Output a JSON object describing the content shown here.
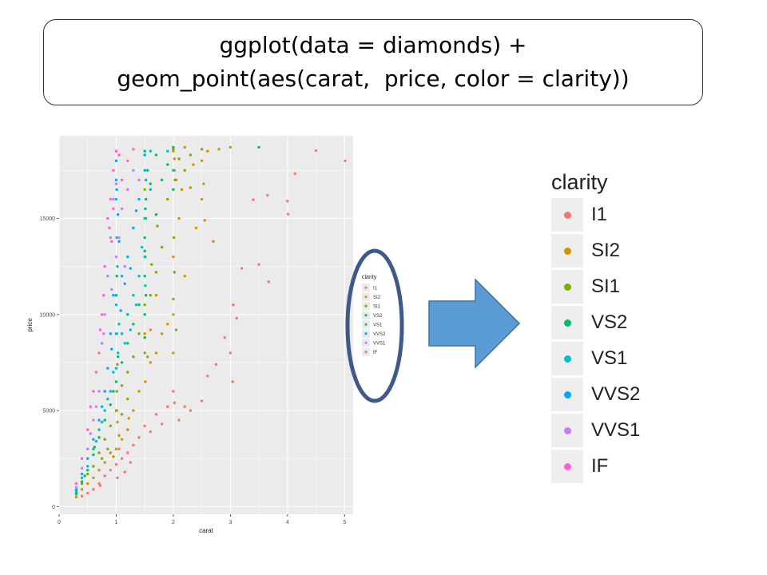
{
  "code": {
    "line1": "ggplot(data = diamonds) +",
    "line2": "geom_point(aes(carat,  price, color = clarity))"
  },
  "colors": {
    "panel_bg": "#ebebeb",
    "grid": "#ffffff",
    "ellipse_stroke": "#3e5a8a",
    "arrow_fill": "#5b9bd5",
    "arrow_stroke": "#41719c"
  },
  "chart_data": {
    "type": "scatter",
    "xlabel": "carat",
    "ylabel": "price",
    "xlim": [
      0,
      5.15
    ],
    "ylim": [
      -400,
      19300
    ],
    "x_ticks": [
      0,
      1,
      2,
      3,
      4,
      5
    ],
    "x_tick_labels": [
      "0",
      "1",
      "2",
      "3",
      "4",
      "5"
    ],
    "y_ticks": [
      0,
      5000,
      10000,
      15000
    ],
    "y_tick_labels": [
      "0",
      "5000",
      "10000",
      "15000"
    ],
    "grid": true,
    "legend_placement": "right",
    "legend": {
      "title": "clarity",
      "entries": [
        {
          "name": "I1",
          "color": "#F8766D"
        },
        {
          "name": "SI2",
          "color": "#CD9600"
        },
        {
          "name": "SI1",
          "color": "#7CAE00"
        },
        {
          "name": "VS2",
          "color": "#00BE67"
        },
        {
          "name": "VS1",
          "color": "#00BFC4"
        },
        {
          "name": "VVS2",
          "color": "#00A9FF"
        },
        {
          "name": "VVS1",
          "color": "#C77CFF"
        },
        {
          "name": "IF",
          "color": "#FF61CC"
        }
      ]
    },
    "series": [
      {
        "name": "I1",
        "points": [
          [
            5.01,
            18000
          ],
          [
            4.5,
            18530
          ],
          [
            4.13,
            17330
          ],
          [
            4.01,
            15220
          ],
          [
            4.0,
            15900
          ],
          [
            3.65,
            16200
          ],
          [
            3.5,
            12600
          ],
          [
            3.4,
            15970
          ],
          [
            3.67,
            11700
          ],
          [
            3.11,
            9800
          ],
          [
            3.05,
            10500
          ],
          [
            3.0,
            8000
          ],
          [
            3.04,
            6500
          ],
          [
            2.75,
            7400
          ],
          [
            2.5,
            5500
          ],
          [
            2.3,
            5000
          ],
          [
            2.1,
            4500
          ],
          [
            2.0,
            6000
          ],
          [
            1.9,
            5200
          ],
          [
            1.7,
            4800
          ],
          [
            1.5,
            4200
          ],
          [
            1.4,
            3600
          ],
          [
            1.3,
            3200
          ],
          [
            1.2,
            2800
          ],
          [
            1.1,
            2500
          ],
          [
            1.0,
            2200
          ],
          [
            0.9,
            1900
          ],
          [
            0.8,
            1600
          ],
          [
            0.7,
            1200
          ],
          [
            0.6,
            900
          ],
          [
            0.5,
            700
          ],
          [
            0.4,
            550
          ],
          [
            1.05,
            3000
          ],
          [
            1.15,
            1800
          ],
          [
            1.25,
            2300
          ],
          [
            1.6,
            3900
          ],
          [
            1.8,
            4300
          ],
          [
            2.2,
            5200
          ],
          [
            2.6,
            6800
          ],
          [
            3.2,
            12400
          ],
          [
            2.9,
            8800
          ],
          [
            2.02,
            5400
          ],
          [
            1.02,
            1500
          ],
          [
            0.72,
            1100
          ]
        ]
      },
      {
        "name": "SI2",
        "points": [
          [
            3.0,
            18700
          ],
          [
            2.8,
            18600
          ],
          [
            2.6,
            18500
          ],
          [
            2.5,
            16000
          ],
          [
            2.4,
            14500
          ],
          [
            2.3,
            16600
          ],
          [
            2.2,
            12000
          ],
          [
            2.1,
            15000
          ],
          [
            2.05,
            17000
          ],
          [
            2.02,
            18100
          ],
          [
            2.0,
            18500
          ],
          [
            2.0,
            13000
          ],
          [
            2.0,
            10000
          ],
          [
            2.0,
            8000
          ],
          [
            1.9,
            9500
          ],
          [
            1.8,
            9000
          ],
          [
            1.7,
            8000
          ],
          [
            1.6,
            7500
          ],
          [
            1.51,
            6500
          ],
          [
            1.5,
            9000
          ],
          [
            1.4,
            6000
          ],
          [
            1.3,
            5000
          ],
          [
            1.2,
            4000
          ],
          [
            1.1,
            3500
          ],
          [
            1.01,
            5000
          ],
          [
            1.0,
            3000
          ],
          [
            0.9,
            2800
          ],
          [
            0.8,
            2300
          ],
          [
            0.7,
            1900
          ],
          [
            0.6,
            1500
          ],
          [
            0.5,
            1200
          ],
          [
            0.4,
            900
          ],
          [
            0.3,
            500
          ],
          [
            2.53,
            16800
          ],
          [
            2.5,
            18000
          ],
          [
            2.7,
            13800
          ],
          [
            2.02,
            17500
          ],
          [
            2.15,
            16500
          ],
          [
            2.2,
            18700
          ],
          [
            2.35,
            17800
          ],
          [
            2.55,
            14900
          ],
          [
            1.7,
            11000
          ],
          [
            1.6,
            9200
          ],
          [
            1.55,
            7800
          ],
          [
            1.02,
            4400
          ],
          [
            1.05,
            3700
          ],
          [
            0.95,
            2600
          ],
          [
            1.22,
            4600
          ]
        ]
      },
      {
        "name": "SI1",
        "points": [
          [
            2.0,
            18600
          ],
          [
            2.03,
            17000
          ],
          [
            2.1,
            18100
          ],
          [
            2.2,
            17500
          ],
          [
            2.3,
            18300
          ],
          [
            2.5,
            18600
          ],
          [
            1.9,
            16000
          ],
          [
            1.8,
            13500
          ],
          [
            1.7,
            12200
          ],
          [
            1.6,
            11000
          ],
          [
            1.52,
            15000
          ],
          [
            1.5,
            10500
          ],
          [
            1.5,
            8000
          ],
          [
            1.4,
            9000
          ],
          [
            1.3,
            7800
          ],
          [
            1.2,
            7000
          ],
          [
            1.1,
            6300
          ],
          [
            1.01,
            6000
          ],
          [
            1.0,
            5000
          ],
          [
            0.9,
            4200
          ],
          [
            0.8,
            3500
          ],
          [
            0.7,
            2800
          ],
          [
            0.6,
            2100
          ],
          [
            0.5,
            1700
          ],
          [
            0.4,
            1200
          ],
          [
            0.3,
            650
          ],
          [
            2.01,
            14000
          ],
          [
            2.02,
            12200
          ],
          [
            2.0,
            10800
          ],
          [
            1.51,
            13000
          ],
          [
            1.5,
            16500
          ],
          [
            1.02,
            7400
          ],
          [
            1.1,
            4800
          ],
          [
            1.2,
            5600
          ],
          [
            0.85,
            3000
          ],
          [
            0.75,
            2500
          ],
          [
            2.05,
            9200
          ],
          [
            1.72,
            14600
          ],
          [
            1.62,
            12600
          ]
        ]
      },
      {
        "name": "VS2",
        "points": [
          [
            1.5,
            18500
          ],
          [
            1.55,
            17500
          ],
          [
            1.6,
            16800
          ],
          [
            1.51,
            15500
          ],
          [
            1.5,
            14000
          ],
          [
            1.5,
            12000
          ],
          [
            1.5,
            10000
          ],
          [
            1.4,
            10500
          ],
          [
            1.3,
            9500
          ],
          [
            1.2,
            8500
          ],
          [
            1.1,
            7500
          ],
          [
            1.01,
            9000
          ],
          [
            1.0,
            6500
          ],
          [
            0.9,
            5300
          ],
          [
            0.8,
            4500
          ],
          [
            0.7,
            3600
          ],
          [
            0.6,
            2700
          ],
          [
            0.5,
            1900
          ],
          [
            0.4,
            1300
          ],
          [
            0.3,
            700
          ],
          [
            2.0,
            18700
          ],
          [
            2.0,
            16500
          ],
          [
            1.9,
            17800
          ],
          [
            1.7,
            18300
          ],
          [
            1.52,
            16000
          ],
          [
            1.52,
            11000
          ],
          [
            1.0,
            11000
          ],
          [
            1.01,
            12000
          ],
          [
            3.5,
            18700
          ],
          [
            1.03,
            7800
          ],
          [
            0.95,
            6000
          ],
          [
            1.2,
            10000
          ],
          [
            1.5,
            8800
          ],
          [
            0.62,
            3100
          ],
          [
            0.45,
            1600
          ],
          [
            1.7,
            15200
          ],
          [
            1.8,
            17000
          ],
          [
            1.5,
            13300
          ]
        ]
      },
      {
        "name": "VS1",
        "points": [
          [
            1.5,
            18300
          ],
          [
            1.52,
            17000
          ],
          [
            1.5,
            15000
          ],
          [
            1.5,
            13000
          ],
          [
            1.51,
            11500
          ],
          [
            1.0,
            16000
          ],
          [
            1.01,
            14000
          ],
          [
            1.02,
            12500
          ],
          [
            1.0,
            10500
          ],
          [
            1.1,
            9000
          ],
          [
            1.2,
            10000
          ],
          [
            1.3,
            11000
          ],
          [
            1.4,
            12000
          ],
          [
            0.9,
            6000
          ],
          [
            0.8,
            5000
          ],
          [
            0.7,
            4000
          ],
          [
            0.6,
            3000
          ],
          [
            0.5,
            2100
          ],
          [
            0.4,
            1500
          ],
          [
            0.3,
            800
          ],
          [
            1.03,
            8000
          ],
          [
            1.05,
            9500
          ],
          [
            0.95,
            7000
          ],
          [
            1.15,
            8500
          ],
          [
            1.25,
            9200
          ],
          [
            1.35,
            10500
          ],
          [
            1.45,
            13500
          ],
          [
            0.85,
            5600
          ],
          [
            1.0,
            9000
          ],
          [
            1.0,
            7200
          ],
          [
            2.0,
            17500
          ],
          [
            1.9,
            18500
          ],
          [
            1.6,
            16500
          ],
          [
            1.6,
            18500
          ],
          [
            0.75,
            4400
          ],
          [
            0.65,
            3400
          ]
        ]
      },
      {
        "name": "VVS2",
        "points": [
          [
            1.0,
            18000
          ],
          [
            1.0,
            17000
          ],
          [
            1.01,
            16500
          ],
          [
            1.03,
            15200
          ],
          [
            1.05,
            13800
          ],
          [
            1.1,
            12000
          ],
          [
            1.2,
            13000
          ],
          [
            1.3,
            14500
          ],
          [
            1.4,
            16000
          ],
          [
            1.5,
            17500
          ],
          [
            0.9,
            9000
          ],
          [
            0.8,
            6000
          ],
          [
            0.7,
            4500
          ],
          [
            0.6,
            3500
          ],
          [
            0.5,
            2500
          ],
          [
            0.4,
            1700
          ],
          [
            0.3,
            900
          ],
          [
            0.95,
            11000
          ],
          [
            1.08,
            10200
          ],
          [
            1.15,
            11600
          ],
          [
            1.25,
            12400
          ],
          [
            0.85,
            7200
          ],
          [
            0.75,
            5200
          ],
          [
            1.5,
            18300
          ],
          [
            1.35,
            15400
          ],
          [
            0.92,
            8200
          ]
        ]
      },
      {
        "name": "VVS1",
        "points": [
          [
            1.0,
            18500
          ],
          [
            0.95,
            16000
          ],
          [
            0.9,
            14000
          ],
          [
            1.0,
            13000
          ],
          [
            1.1,
            15500
          ],
          [
            1.2,
            16500
          ],
          [
            1.3,
            17500
          ],
          [
            0.8,
            10000
          ],
          [
            0.75,
            8500
          ],
          [
            0.7,
            6000
          ],
          [
            0.6,
            4500
          ],
          [
            0.5,
            3000
          ],
          [
            0.4,
            2000
          ],
          [
            0.3,
            1000
          ],
          [
            0.85,
            12000
          ],
          [
            0.92,
            11300
          ],
          [
            1.05,
            14000
          ],
          [
            1.15,
            12500
          ],
          [
            0.65,
            5200
          ],
          [
            0.55,
            3800
          ],
          [
            1.4,
            17000
          ],
          [
            0.78,
            9000
          ]
        ]
      },
      {
        "name": "IF",
        "points": [
          [
            1.0,
            18500
          ],
          [
            1.05,
            18300
          ],
          [
            0.95,
            17500
          ],
          [
            1.1,
            17000
          ],
          [
            0.9,
            16000
          ],
          [
            1.2,
            18000
          ],
          [
            0.85,
            15000
          ],
          [
            0.8,
            12500
          ],
          [
            0.75,
            10000
          ],
          [
            0.7,
            8000
          ],
          [
            0.6,
            6000
          ],
          [
            0.5,
            4000
          ],
          [
            0.4,
            2500
          ],
          [
            0.3,
            1200
          ],
          [
            1.3,
            18600
          ],
          [
            0.92,
            13800
          ],
          [
            0.88,
            14500
          ],
          [
            0.78,
            11000
          ],
          [
            0.65,
            7000
          ],
          [
            0.72,
            9200
          ],
          [
            1.0,
            16800
          ],
          [
            0.95,
            15500
          ],
          [
            0.55,
            5200
          ]
        ]
      }
    ]
  }
}
